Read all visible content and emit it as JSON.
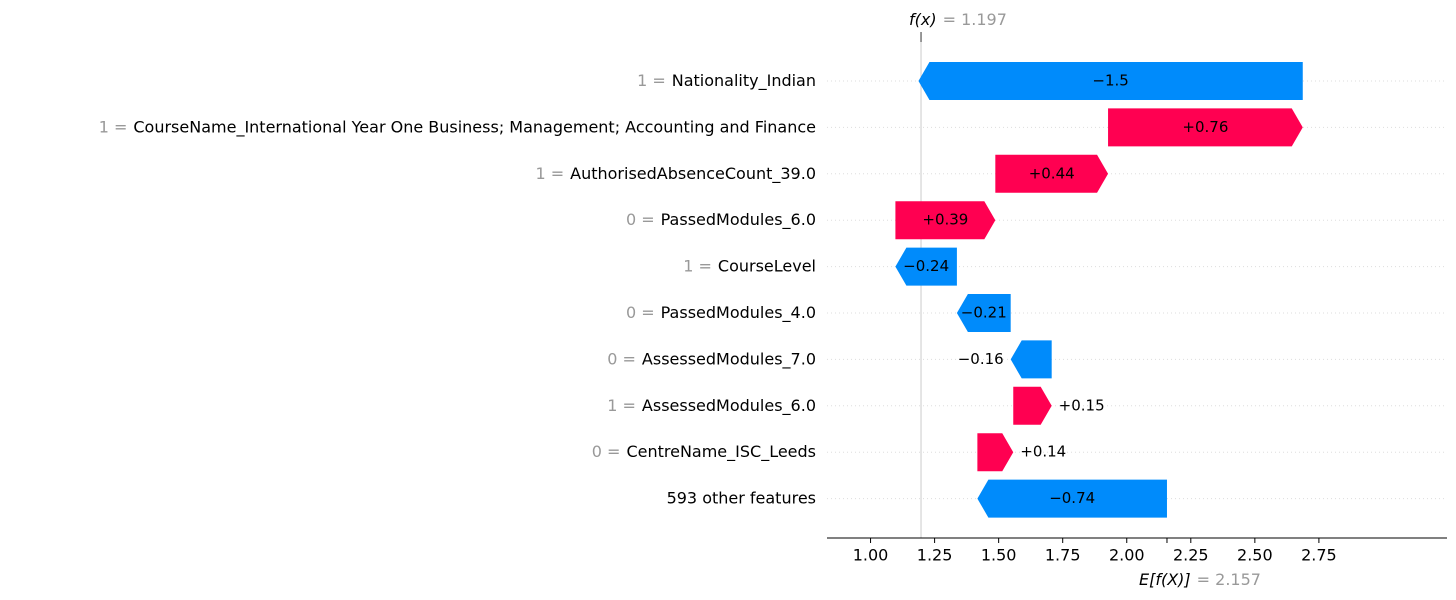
{
  "chart_data": {
    "type": "waterfall",
    "categories": [
      "Nationality_Indian",
      "CourseName_International Year One Business; Management; Accounting and Finance",
      "AuthorisedAbsenceCount_39.0",
      "PassedModules_6.0",
      "CourseLevel",
      "PassedModules_4.0",
      "AssessedModules_7.0",
      "AssessedModules_6.0",
      "CentreName_ISC_Leeds",
      "593 other features"
    ],
    "feature_values": [
      "1 =",
      "1 =",
      "1 =",
      "0 =",
      "1 =",
      "0 =",
      "0 =",
      "1 =",
      "0 =",
      null
    ],
    "values": [
      -1.5,
      0.76,
      0.44,
      0.39,
      -0.24,
      -0.21,
      -0.16,
      0.15,
      0.14,
      -0.74
    ],
    "value_labels": [
      "−1.5",
      "+0.76",
      "+0.44",
      "+0.39",
      "−0.24",
      "−0.21",
      "−0.16",
      "+0.15",
      "+0.14",
      "−0.74"
    ],
    "positive_color": "#ff0051",
    "negative_color": "#008bfb",
    "base": {
      "label": "E[f(X)]",
      "text": "= 2.157",
      "value": 2.157
    },
    "output": {
      "label": "f(x)",
      "text": "= 1.197",
      "value": 1.197
    },
    "xlim": [
      0.83,
      3.25
    ],
    "xticks": [
      {
        "value": 1,
        "label": "1.00"
      },
      {
        "value": 1.25,
        "label": "1.25"
      },
      {
        "value": 1.5,
        "label": "1.50"
      },
      {
        "value": 1.75,
        "label": "1.75"
      },
      {
        "value": 2,
        "label": "2.00"
      },
      {
        "value": 2.25,
        "label": "2.25"
      },
      {
        "value": 2.5,
        "label": "2.50"
      },
      {
        "value": 2.75,
        "label": "2.75"
      }
    ],
    "grid": true
  }
}
